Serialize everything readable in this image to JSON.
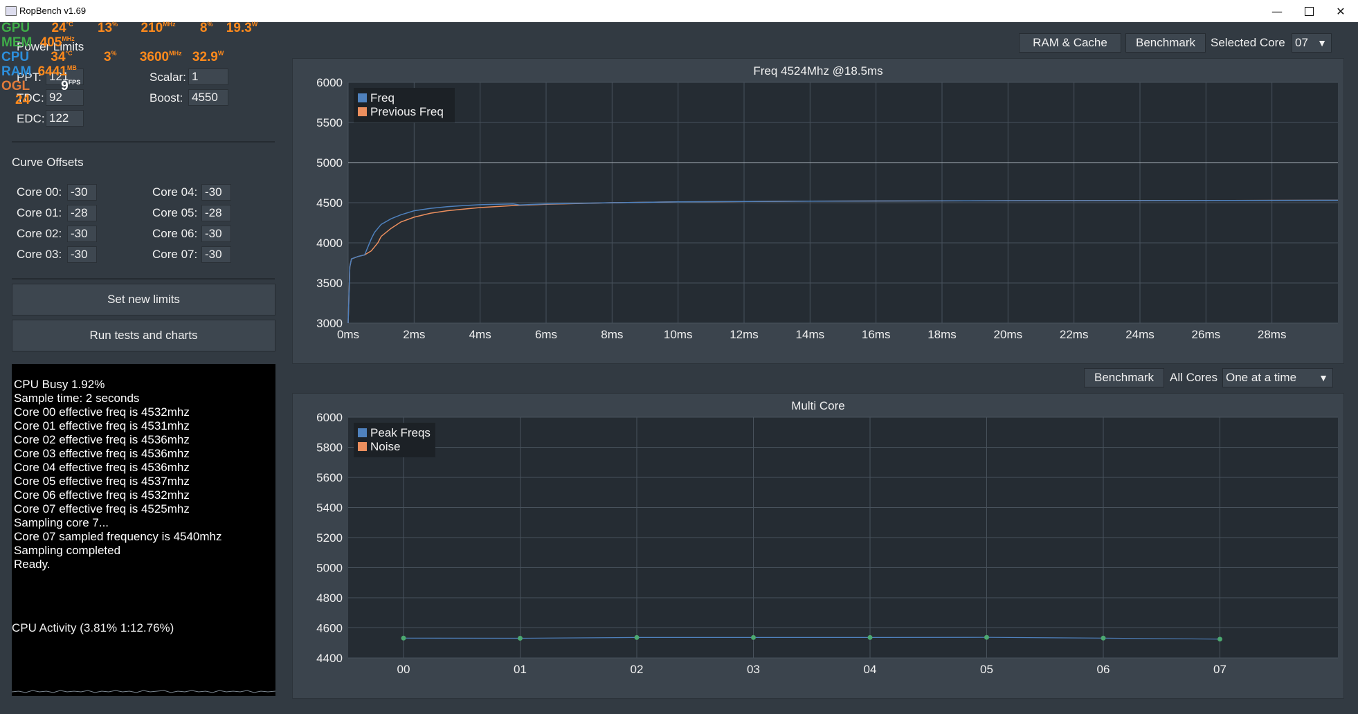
{
  "window": {
    "title": "RopBench v1.69"
  },
  "hud": {
    "gpu": {
      "label": "GPU",
      "temp": "24",
      "temp_unit": "°C",
      "load": "13",
      "load_unit": "%",
      "clock": "210",
      "clock_unit": "MHz",
      "mem": "8",
      "mem_unit": "%",
      "power": "19.3",
      "power_unit": "W"
    },
    "mem": {
      "label": "MEM",
      "value": "405",
      "unit": "MHz"
    },
    "cpu": {
      "label": "CPU",
      "temp": "34",
      "temp_unit": "°C",
      "load": "3",
      "load_unit": "%",
      "clock": "3600",
      "clock_unit": "MHz",
      "power": "32.9",
      "power_unit": "W"
    },
    "ram": {
      "label": "RAM",
      "value": "6441",
      "unit": "MB"
    },
    "ogl": {
      "label": "OGL",
      "fps": "9",
      "fps_unit": "FPS",
      "extra": "24"
    }
  },
  "power_limits": {
    "heading": "Power Limits",
    "ppt_label": "PPT:",
    "ppt_value": "121",
    "tdc_label": "TDC:",
    "tdc_value": "92",
    "edc_label": "EDC:",
    "edc_value": "122",
    "scalar_label": "Scalar:",
    "scalar_value": "1",
    "boost_label": "Boost:",
    "boost_value": "4550"
  },
  "curve_offsets": {
    "heading": "Curve Offsets",
    "cores": [
      {
        "label": "Core 00:",
        "value": "-30"
      },
      {
        "label": "Core 01:",
        "value": "-28"
      },
      {
        "label": "Core 02:",
        "value": "-30"
      },
      {
        "label": "Core 03:",
        "value": "-30"
      },
      {
        "label": "Core 04:",
        "value": "-30"
      },
      {
        "label": "Core 05:",
        "value": "-28"
      },
      {
        "label": "Core 06:",
        "value": "-30"
      },
      {
        "label": "Core 07:",
        "value": "-30"
      }
    ]
  },
  "buttons": {
    "set_limits": "Set new limits",
    "run_tests": "Run tests and charts",
    "ram_cache": "RAM & Cache",
    "benchmark_top": "Benchmark",
    "benchmark_multi": "Benchmark"
  },
  "console": {
    "lines": [
      "CPU Busy 1.92%",
      "Sample time: 2 seconds",
      "Core 00 effective freq is 4532mhz",
      "Core 01 effective freq is 4531mhz",
      "Core 02 effective freq is 4536mhz",
      "Core 03 effective freq is 4536mhz",
      "Core 04 effective freq is 4536mhz",
      "Core 05 effective freq is 4537mhz",
      "Core 06 effective freq is 4532mhz",
      "Core 07 effective freq is 4525mhz",
      "Sampling core 7...",
      "Core 07 sampled frequency is 4540mhz",
      "Sampling completed",
      "Ready."
    ]
  },
  "activity": {
    "label": "CPU Activity (3.81% 1:12.76%)"
  },
  "selectors": {
    "selected_core_label": "Selected Core",
    "selected_core_value": "07",
    "all_cores_label": "All Cores",
    "mode_value": "One at a time"
  },
  "colors": {
    "series1": "#4f81bd",
    "series2": "#ec8f5e",
    "point": "#4ca870",
    "grid": "#48525c"
  },
  "chart_data": [
    {
      "type": "line",
      "title": "Freq 4524Mhz @18.5ms",
      "xlim": [
        0,
        30
      ],
      "ylim": [
        3000,
        6000
      ],
      "yticks": [
        3000,
        3500,
        4000,
        4500,
        5000,
        5500,
        6000
      ],
      "xticks": [
        0,
        2,
        4,
        6,
        8,
        10,
        12,
        14,
        16,
        18,
        20,
        22,
        24,
        26,
        28
      ],
      "xtick_labels": [
        "0ms",
        "2ms",
        "4ms",
        "6ms",
        "8ms",
        "10ms",
        "12ms",
        "14ms",
        "16ms",
        "18ms",
        "20ms",
        "22ms",
        "24ms",
        "26ms",
        "28ms"
      ],
      "hline": 5000,
      "legend": [
        "Freq",
        "Previous Freq"
      ],
      "legend_position": "top-left",
      "series": [
        {
          "name": "Freq",
          "x": [
            0,
            0.05,
            0.1,
            0.3,
            0.5,
            0.6,
            0.7,
            0.8,
            1.0,
            1.3,
            1.6,
            2.0,
            2.5,
            3.0,
            3.5,
            4.0,
            5.0,
            5.2,
            6.0,
            8.0,
            10.0,
            14.0,
            20.0,
            30.0
          ],
          "y": [
            3000,
            3700,
            3800,
            3830,
            3850,
            3950,
            4050,
            4130,
            4230,
            4300,
            4350,
            4400,
            4430,
            4450,
            4465,
            4475,
            4485,
            4472,
            4485,
            4500,
            4510,
            4520,
            4525,
            4530
          ]
        },
        {
          "name": "Previous Freq",
          "x": [
            0,
            0.05,
            0.1,
            0.3,
            0.5,
            0.7,
            0.9,
            1.0,
            1.3,
            1.6,
            2.0,
            2.5,
            3.0,
            3.5,
            4.0,
            5.0,
            6.0,
            8.0,
            10.0,
            14.0,
            20.0,
            30.0
          ],
          "y": [
            3000,
            3700,
            3800,
            3830,
            3850,
            3900,
            4000,
            4080,
            4180,
            4260,
            4320,
            4370,
            4400,
            4420,
            4440,
            4465,
            4480,
            4500,
            4510,
            4520,
            4525,
            4530
          ]
        }
      ]
    },
    {
      "type": "scatter",
      "title": "Multi Core",
      "categories": [
        "00",
        "01",
        "02",
        "03",
        "04",
        "05",
        "06",
        "07"
      ],
      "ylim": [
        4400,
        6000
      ],
      "yticks": [
        4400,
        4600,
        4800,
        5000,
        5200,
        5400,
        5600,
        5800,
        6000
      ],
      "legend": [
        "Peak Freqs",
        "Noise"
      ],
      "legend_position": "top-left",
      "series": [
        {
          "name": "Peak Freqs",
          "values": [
            4532,
            4531,
            4536,
            4536,
            4536,
            4537,
            4532,
            4525
          ]
        }
      ]
    }
  ]
}
